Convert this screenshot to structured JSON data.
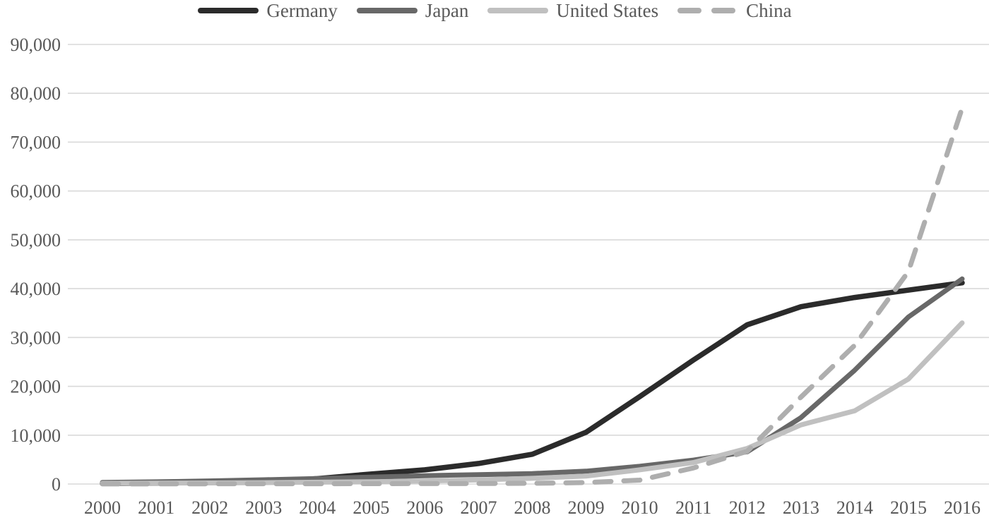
{
  "colors": {
    "background": "#ffffff",
    "grid": "#d9d9d9",
    "axis_text": "#595959"
  },
  "legend": {
    "position": "top-center"
  },
  "chart_data": {
    "type": "line",
    "title": "",
    "xlabel": "",
    "ylabel": "",
    "grid": "horizontal",
    "legend_position": "top-center",
    "ylim": [
      0,
      90000
    ],
    "ytick_step": 10000,
    "ytick_labels": [
      "0",
      "10,000",
      "20,000",
      "30,000",
      "40,000",
      "50,000",
      "60,000",
      "70,000",
      "80,000",
      "90,000"
    ],
    "x": [
      2000,
      2001,
      2002,
      2003,
      2004,
      2005,
      2006,
      2007,
      2008,
      2009,
      2010,
      2011,
      2012,
      2013,
      2014,
      2015,
      2016
    ],
    "xtick_labels": [
      "2000",
      "2001",
      "2002",
      "2003",
      "2004",
      "2005",
      "2006",
      "2007",
      "2008",
      "2009",
      "2010",
      "2011",
      "2012",
      "2013",
      "2014",
      "2015",
      "2016"
    ],
    "series": [
      {
        "name": "Germany",
        "color": "#2b2b2b",
        "line_style": "solid",
        "stroke_width": 7.5,
        "values": [
          100,
          200,
          300,
          450,
          1100,
          2050,
          2900,
          4200,
          6100,
          10600,
          17900,
          25400,
          32600,
          36300,
          38200,
          39700,
          41200
        ]
      },
      {
        "name": "Japan",
        "color": "#686868",
        "line_style": "solid",
        "stroke_width": 7,
        "values": [
          330,
          450,
          640,
          860,
          1130,
          1420,
          1710,
          1920,
          2140,
          2630,
          3620,
          4900,
          6600,
          13600,
          23300,
          34200,
          42000
        ]
      },
      {
        "name": "United States",
        "color": "#c0c0c0",
        "line_style": "solid",
        "stroke_width": 7,
        "values": [
          140,
          170,
          210,
          280,
          380,
          480,
          620,
          830,
          1170,
          1620,
          2900,
          4400,
          7300,
          12100,
          15000,
          21500,
          33000
        ]
      },
      {
        "name": "China",
        "color": "#aeaeae",
        "line_style": "dashed",
        "stroke_width": 7,
        "values": [
          20,
          25,
          45,
          55,
          65,
          70,
          80,
          100,
          140,
          300,
          800,
          3300,
          6700,
          17800,
          28400,
          43500,
          77000
        ]
      }
    ]
  }
}
